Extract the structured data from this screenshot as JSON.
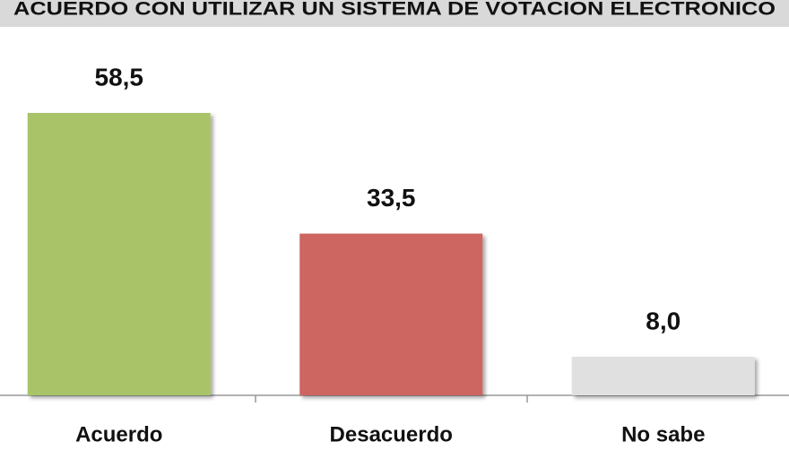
{
  "chart_data": {
    "type": "bar",
    "title": "ACUERDO CON UTILIZAR UN SISTEMA DE VOTACION ELECTRONICO",
    "categories": [
      "Acuerdo",
      "Desacuerdo",
      "No sabe"
    ],
    "values": [
      58.5,
      33.5,
      8.0
    ],
    "value_labels": [
      "58,5",
      "33,5",
      "8,0"
    ],
    "colors": [
      "#a9c467",
      "#cd6560",
      "#e0e0e0"
    ]
  }
}
